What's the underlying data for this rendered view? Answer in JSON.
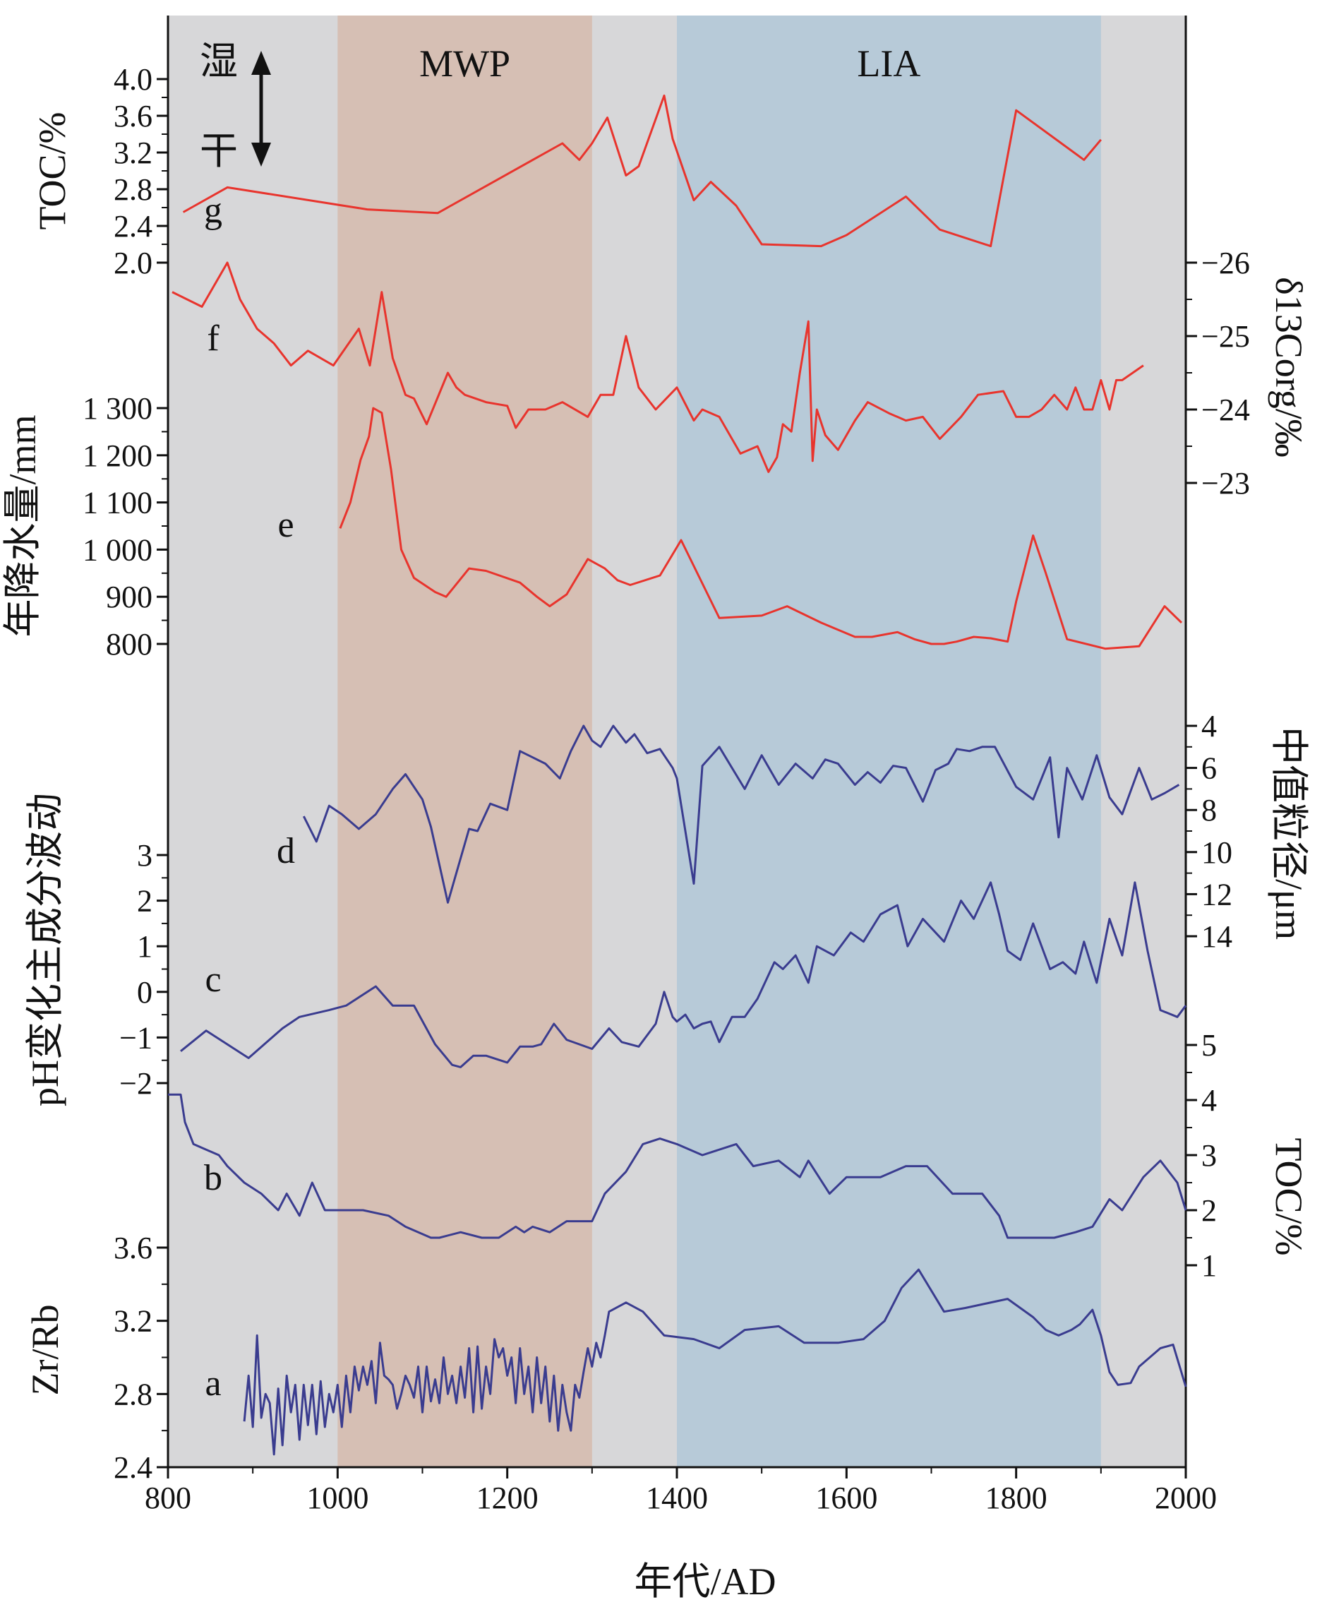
{
  "chart_data": {
    "type": "line",
    "x_axis": {
      "label": "年代/AD",
      "range": [
        800,
        2000
      ],
      "ticks": [
        "800",
        "1000",
        "1200",
        "1400",
        "1600",
        "1800",
        "2000"
      ]
    },
    "periods": [
      {
        "name": "MWP",
        "start": 1000,
        "end": 1300,
        "color": "#d6bfb4"
      },
      {
        "name": "LIA",
        "start": 1400,
        "end": 1900,
        "color": "#b7cad8"
      }
    ],
    "background_color": "#d7d7d9",
    "indicator": {
      "wet": "湿",
      "dry": "干"
    },
    "panels": [
      {
        "letter": "g",
        "side": "left",
        "label": "TOC/%",
        "color": "#e8342d",
        "ylim": [
          2.0,
          4.0
        ],
        "ticks": [
          "2.0",
          "2.4",
          "2.8",
          "3.2",
          "3.6",
          "4.0"
        ],
        "x": [
          818,
          870,
          1035,
          1118,
          1265,
          1285,
          1300,
          1318,
          1340,
          1355,
          1385,
          1395,
          1420,
          1440,
          1470,
          1500,
          1570,
          1600,
          1670,
          1710,
          1770,
          1800,
          1880,
          1900
        ],
        "values": [
          2.55,
          2.82,
          2.58,
          2.54,
          3.3,
          3.12,
          3.3,
          3.58,
          2.95,
          3.05,
          3.82,
          3.35,
          2.68,
          2.88,
          2.62,
          2.2,
          2.18,
          2.3,
          2.72,
          2.36,
          2.18,
          3.66,
          3.12,
          3.34
        ]
      },
      {
        "letter": "f",
        "side": "right",
        "label": "δ13Corg/‰",
        "color": "#e8342d",
        "ylim": [
          -26,
          -23
        ],
        "ticks": [
          "-26",
          "-25",
          "-24",
          "-23"
        ],
        "x": [
          805,
          840,
          870,
          885,
          905,
          925,
          945,
          965,
          980,
          995,
          1025,
          1038,
          1052,
          1065,
          1080,
          1090,
          1105,
          1130,
          1140,
          1150,
          1175,
          1200,
          1210,
          1225,
          1245,
          1265,
          1295,
          1310,
          1325,
          1340,
          1355,
          1375,
          1400,
          1420,
          1430,
          1450,
          1475,
          1495,
          1508,
          1518,
          1525,
          1535,
          1545,
          1555,
          1560,
          1565,
          1575,
          1590,
          1610,
          1625,
          1650,
          1670,
          1690,
          1710,
          1735,
          1755,
          1785,
          1800,
          1815,
          1830,
          1845,
          1860,
          1870,
          1880,
          1890,
          1900,
          1910,
          1918,
          1925,
          1950
        ],
        "values": [
          -25.6,
          -25.4,
          -26.0,
          -25.5,
          -25.1,
          -24.9,
          -24.6,
          -24.8,
          -24.7,
          -24.6,
          -25.1,
          -24.6,
          -25.6,
          -24.7,
          -24.2,
          -24.15,
          -23.8,
          -24.5,
          -24.3,
          -24.2,
          -24.1,
          -24.05,
          -23.75,
          -24.0,
          -24.0,
          -24.1,
          -23.9,
          -24.2,
          -24.2,
          -25.0,
          -24.3,
          -24.0,
          -24.3,
          -23.85,
          -24.0,
          -23.9,
          -23.4,
          -23.5,
          -23.15,
          -23.35,
          -23.8,
          -23.7,
          -24.5,
          -25.2,
          -23.3,
          -24.0,
          -23.65,
          -23.45,
          -23.85,
          -24.1,
          -23.95,
          -23.85,
          -23.9,
          -23.6,
          -23.9,
          -24.2,
          -24.25,
          -23.9,
          -23.9,
          -24.0,
          -24.2,
          -24.0,
          -24.3,
          -24.0,
          -24.0,
          -24.4,
          -24.0,
          -24.4,
          -24.4,
          -24.6
        ]
      },
      {
        "letter": "e",
        "side": "left",
        "label": "年降水量/mm",
        "color": "#e8342d",
        "ylim": [
          800,
          1300
        ],
        "ticks": [
          "800",
          "900",
          "1 000",
          "1 100",
          "1 200",
          "1 300"
        ],
        "x": [
          1003,
          1015,
          1027,
          1037,
          1042,
          1052,
          1063,
          1075,
          1090,
          1115,
          1128,
          1155,
          1175,
          1215,
          1235,
          1250,
          1270,
          1295,
          1315,
          1330,
          1345,
          1380,
          1405,
          1450,
          1500,
          1530,
          1570,
          1610,
          1630,
          1660,
          1680,
          1700,
          1715,
          1730,
          1750,
          1770,
          1790,
          1800,
          1820,
          1835,
          1860,
          1905,
          1945,
          1975,
          1995
        ],
        "values": [
          1045,
          1100,
          1190,
          1240,
          1300,
          1290,
          1170,
          1000,
          940,
          910,
          900,
          960,
          955,
          930,
          900,
          880,
          905,
          980,
          960,
          935,
          925,
          945,
          1020,
          855,
          860,
          880,
          845,
          815,
          815,
          825,
          810,
          800,
          800,
          805,
          815,
          812,
          805,
          890,
          1030,
          950,
          810,
          790,
          795,
          880,
          845
        ]
      },
      {
        "letter": "d",
        "side": "right",
        "label": "中值粒径/μm",
        "color": "#3a3c8f",
        "ylim": [
          4,
          14
        ],
        "ticks": [
          "4",
          "6",
          "8",
          "10",
          "12",
          "14"
        ],
        "x": [
          960,
          975,
          990,
          1005,
          1025,
          1045,
          1065,
          1080,
          1100,
          1110,
          1130,
          1155,
          1165,
          1180,
          1200,
          1215,
          1230,
          1245,
          1262,
          1275,
          1290,
          1300,
          1310,
          1325,
          1340,
          1350,
          1365,
          1380,
          1395,
          1400,
          1420,
          1430,
          1450,
          1480,
          1500,
          1520,
          1540,
          1560,
          1575,
          1590,
          1610,
          1625,
          1640,
          1655,
          1670,
          1690,
          1705,
          1720,
          1730,
          1745,
          1760,
          1775,
          1800,
          1820,
          1840,
          1850,
          1860,
          1878,
          1895,
          1910,
          1925,
          1945,
          1960,
          1975,
          1992
        ],
        "values": [
          8.3,
          9.5,
          7.8,
          8.2,
          8.9,
          8.2,
          7.0,
          6.3,
          7.5,
          8.8,
          12.4,
          8.9,
          9.0,
          7.7,
          8.0,
          5.2,
          5.5,
          5.8,
          6.5,
          5.2,
          4.0,
          4.7,
          5.0,
          4.0,
          4.8,
          4.4,
          5.3,
          5.1,
          6.0,
          6.5,
          11.5,
          5.9,
          5.0,
          7.0,
          5.4,
          6.8,
          5.8,
          6.5,
          5.6,
          5.8,
          6.8,
          6.2,
          6.7,
          5.9,
          6.0,
          7.6,
          6.1,
          5.8,
          5.1,
          5.2,
          5.0,
          5.0,
          6.9,
          7.5,
          5.5,
          9.3,
          6.0,
          7.5,
          5.4,
          7.4,
          8.2,
          6.0,
          7.5,
          7.2,
          6.8
        ]
      },
      {
        "letter": "c",
        "side": "left",
        "label": "pH变化主成分波动",
        "color": "#3a3c8f",
        "ylim": [
          -2,
          3
        ],
        "ticks": [
          "-2",
          "-1",
          "0",
          "1",
          "2",
          "3"
        ],
        "x": [
          815,
          845,
          895,
          935,
          955,
          990,
          1010,
          1045,
          1065,
          1090,
          1115,
          1135,
          1145,
          1160,
          1175,
          1200,
          1215,
          1230,
          1240,
          1255,
          1270,
          1300,
          1320,
          1335,
          1355,
          1375,
          1385,
          1395,
          1400,
          1410,
          1420,
          1430,
          1440,
          1450,
          1465,
          1480,
          1495,
          1515,
          1525,
          1540,
          1555,
          1565,
          1585,
          1605,
          1620,
          1640,
          1660,
          1672,
          1690,
          1715,
          1735,
          1750,
          1770,
          1780,
          1790,
          1805,
          1820,
          1840,
          1855,
          1870,
          1880,
          1895,
          1910,
          1925,
          1940,
          1955,
          1970,
          1990,
          2000
        ],
        "values": [
          -1.3,
          -0.85,
          -1.45,
          -0.8,
          -0.55,
          -0.4,
          -0.3,
          0.12,
          -0.3,
          -0.3,
          -1.15,
          -1.6,
          -1.65,
          -1.4,
          -1.4,
          -1.55,
          -1.2,
          -1.2,
          -1.15,
          -0.7,
          -1.05,
          -1.25,
          -0.8,
          -1.1,
          -1.2,
          -0.7,
          0.0,
          -0.55,
          -0.65,
          -0.5,
          -0.8,
          -0.7,
          -0.65,
          -1.1,
          -0.55,
          -0.55,
          -0.15,
          0.65,
          0.5,
          0.8,
          0.2,
          1.0,
          0.8,
          1.3,
          1.1,
          1.7,
          1.9,
          1.0,
          1.6,
          1.1,
          2.0,
          1.6,
          2.4,
          1.7,
          0.9,
          0.7,
          1.5,
          0.5,
          0.65,
          0.4,
          1.1,
          0.2,
          1.6,
          0.8,
          2.4,
          0.9,
          -0.4,
          -0.55,
          -0.3
        ]
      },
      {
        "letter": "b",
        "side": "right",
        "label": "TOC/%",
        "color": "#3a3c8f",
        "ylim": [
          1,
          5
        ],
        "ticks": [
          "1",
          "2",
          "3",
          "4",
          "5"
        ],
        "x": [
          800,
          815,
          820,
          830,
          845,
          860,
          870,
          890,
          910,
          930,
          940,
          955,
          965,
          970,
          985,
          1000,
          1010,
          1030,
          1060,
          1080,
          1110,
          1120,
          1145,
          1170,
          1190,
          1210,
          1220,
          1230,
          1250,
          1270,
          1290,
          1300,
          1315,
          1340,
          1360,
          1380,
          1400,
          1430,
          1470,
          1490,
          1520,
          1545,
          1555,
          1580,
          1600,
          1640,
          1670,
          1695,
          1725,
          1760,
          1780,
          1790,
          1810,
          1830,
          1845,
          1870,
          1890,
          1910,
          1925,
          1950,
          1970,
          1990,
          2000
        ],
        "values": [
          4.1,
          4.1,
          3.6,
          3.2,
          3.1,
          3.0,
          2.8,
          2.5,
          2.3,
          2.0,
          2.3,
          1.9,
          2.3,
          2.5,
          2.0,
          2.0,
          2.0,
          2.0,
          1.9,
          1.7,
          1.5,
          1.5,
          1.6,
          1.5,
          1.5,
          1.7,
          1.6,
          1.7,
          1.6,
          1.8,
          1.8,
          1.8,
          2.3,
          2.7,
          3.2,
          3.3,
          3.2,
          3.0,
          3.2,
          2.8,
          2.9,
          2.6,
          2.9,
          2.3,
          2.6,
          2.6,
          2.8,
          2.8,
          2.3,
          2.3,
          1.9,
          1.5,
          1.5,
          1.5,
          1.5,
          1.6,
          1.7,
          2.2,
          2.0,
          2.6,
          2.9,
          2.5,
          2.0
        ]
      },
      {
        "letter": "a",
        "side": "left",
        "label": "Zr/Rb",
        "color": "#3a3c8f",
        "ylim": [
          2.4,
          3.6
        ],
        "ticks": [
          "2.4",
          "2.8",
          "3.2",
          "3.6"
        ],
        "x": [
          890,
          895,
          900,
          905,
          910,
          915,
          920,
          925,
          930,
          935,
          940,
          945,
          950,
          955,
          960,
          965,
          970,
          975,
          980,
          985,
          990,
          995,
          1000,
          1005,
          1010,
          1015,
          1020,
          1025,
          1030,
          1035,
          1040,
          1045,
          1050,
          1055,
          1060,
          1065,
          1070,
          1075,
          1080,
          1085,
          1090,
          1095,
          1100,
          1105,
          1110,
          1115,
          1120,
          1125,
          1130,
          1135,
          1140,
          1145,
          1150,
          1155,
          1160,
          1165,
          1170,
          1175,
          1180,
          1185,
          1190,
          1195,
          1200,
          1205,
          1210,
          1215,
          1220,
          1225,
          1230,
          1235,
          1240,
          1245,
          1250,
          1255,
          1260,
          1265,
          1270,
          1275,
          1280,
          1285,
          1290,
          1295,
          1300,
          1305,
          1310,
          1315,
          1320,
          1340,
          1360,
          1385,
          1420,
          1450,
          1480,
          1520,
          1550,
          1590,
          1620,
          1645,
          1665,
          1685,
          1715,
          1740,
          1790,
          1820,
          1835,
          1850,
          1865,
          1875,
          1890,
          1900,
          1910,
          1920,
          1935,
          1945,
          1970,
          1985,
          2000
        ],
        "values": [
          2.65,
          2.9,
          2.62,
          3.12,
          2.67,
          2.8,
          2.75,
          2.47,
          2.83,
          2.52,
          2.9,
          2.7,
          2.85,
          2.55,
          2.85,
          2.63,
          2.85,
          2.58,
          2.87,
          2.62,
          2.8,
          2.7,
          2.85,
          2.62,
          2.9,
          2.7,
          2.95,
          2.82,
          2.95,
          2.85,
          2.98,
          2.75,
          3.08,
          2.9,
          2.88,
          2.85,
          2.72,
          2.8,
          2.9,
          2.85,
          2.78,
          2.95,
          2.7,
          2.95,
          2.76,
          2.88,
          2.75,
          3.0,
          2.8,
          2.9,
          2.75,
          2.95,
          2.78,
          3.05,
          2.7,
          3.06,
          2.72,
          2.95,
          2.8,
          3.1,
          3.0,
          3.05,
          2.9,
          3.0,
          2.75,
          3.05,
          2.8,
          2.95,
          2.7,
          3.0,
          2.75,
          2.95,
          2.65,
          2.9,
          2.6,
          2.85,
          2.7,
          2.6,
          2.85,
          2.78,
          2.92,
          3.05,
          2.95,
          3.08,
          3.0,
          3.12,
          3.25,
          3.3,
          3.25,
          3.12,
          3.1,
          3.05,
          3.15,
          3.17,
          3.08,
          3.08,
          3.1,
          3.2,
          3.38,
          3.48,
          3.25,
          3.27,
          3.32,
          3.22,
          3.15,
          3.12,
          3.15,
          3.18,
          3.26,
          3.12,
          2.92,
          2.85,
          2.86,
          2.95,
          3.05,
          3.07,
          2.84
        ]
      }
    ]
  }
}
